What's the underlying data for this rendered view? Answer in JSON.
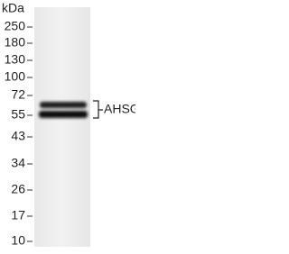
{
  "unit": "kDa",
  "markers": [
    "250",
    "180",
    "130",
    "100",
    "72",
    "55",
    "43",
    "34",
    "26",
    "17",
    "10"
  ],
  "band_label": "AHSG"
}
